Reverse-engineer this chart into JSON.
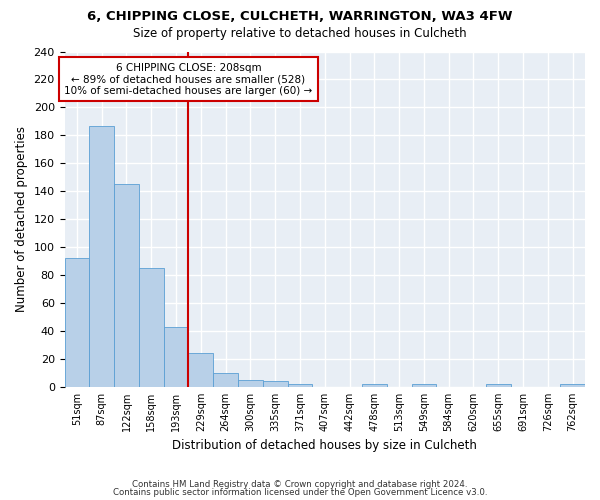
{
  "title": "6, CHIPPING CLOSE, CULCHETH, WARRINGTON, WA3 4FW",
  "subtitle": "Size of property relative to detached houses in Culcheth",
  "xlabel": "Distribution of detached houses by size in Culcheth",
  "ylabel": "Number of detached properties",
  "bin_labels": [
    "51sqm",
    "87sqm",
    "122sqm",
    "158sqm",
    "193sqm",
    "229sqm",
    "264sqm",
    "300sqm",
    "335sqm",
    "371sqm",
    "407sqm",
    "442sqm",
    "478sqm",
    "513sqm",
    "549sqm",
    "584sqm",
    "620sqm",
    "655sqm",
    "691sqm",
    "726sqm",
    "762sqm"
  ],
  "bar_values": [
    92,
    187,
    145,
    85,
    43,
    24,
    10,
    5,
    4,
    2,
    0,
    0,
    2,
    0,
    2,
    0,
    0,
    2,
    0,
    0,
    2
  ],
  "bar_color": "#b8d0e8",
  "bar_edgecolor": "#5a9fd4",
  "bar_linewidth": 0.6,
  "annotation_label": "6 CHIPPING CLOSE: 208sqm",
  "annotation_line1": "← 89% of detached houses are smaller (528)",
  "annotation_line2": "10% of semi-detached houses are larger (60) →",
  "vline_color": "#cc0000",
  "vline_x": 4.5,
  "annotation_box_color": "#cc0000",
  "ylim": [
    0,
    240
  ],
  "yticks": [
    0,
    20,
    40,
    60,
    80,
    100,
    120,
    140,
    160,
    180,
    200,
    220,
    240
  ],
  "background_color": "#e8eef5",
  "grid_color": "#ffffff",
  "footer1": "Contains HM Land Registry data © Crown copyright and database right 2024.",
  "footer2": "Contains public sector information licensed under the Open Government Licence v3.0."
}
